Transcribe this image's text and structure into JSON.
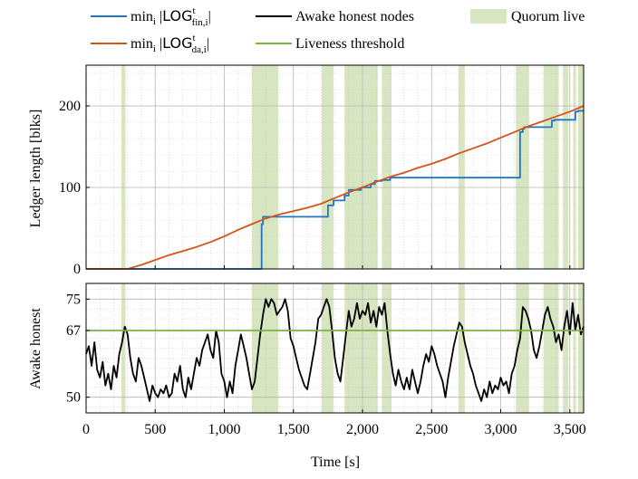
{
  "chart_data": [
    {
      "type": "line",
      "ylabel": "Ledger length [blks]",
      "xlim": [
        0,
        3600
      ],
      "ylim": [
        0,
        250
      ],
      "yticks": [
        0,
        100,
        200
      ],
      "ytick_labels": [
        "0",
        "100",
        "200"
      ],
      "grid": true,
      "legend_position": "top",
      "series": [
        {
          "name": "min_i |LOG^t_fin,i|",
          "legend_html": "min<tspan font-size=\"11\" dy=\"4\">i</tspan><tspan dy=\"-4\"> |</tspan><tspan font-family=\"DejaVu Sans\">LOG</tspan><tspan font-size=\"11\" dy=\"-8\">t</tspan><tspan font-size=\"11\" dx=\"-4\" dy=\"13\">fin,i</tspan><tspan dy=\"-5\">|</tspan>",
          "color": "#1f77c4",
          "x": [
            0,
            1270,
            1270,
            1280,
            1280,
            1750,
            1750,
            1790,
            1790,
            1870,
            1870,
            1900,
            1900,
            1990,
            1990,
            2060,
            2060,
            2090,
            2090,
            2140,
            2140,
            2200,
            2200,
            3140,
            3140,
            3160,
            3160,
            3170,
            3170,
            3180,
            3180,
            3370,
            3370,
            3390,
            3390,
            3540,
            3540,
            3560,
            3560,
            3600
          ],
          "y": [
            0,
            0,
            55,
            55,
            64,
            64,
            78,
            78,
            84,
            84,
            90,
            90,
            97,
            97,
            100,
            100,
            104,
            104,
            108,
            108,
            109,
            109,
            112,
            112,
            168,
            168,
            172,
            172,
            174,
            174,
            174,
            174,
            182,
            182,
            183,
            183,
            193,
            193,
            194,
            194
          ]
        },
        {
          "name": "min_i |LOG^t_da,i|",
          "legend_html": "min<tspan font-size=\"11\" dy=\"4\">i</tspan><tspan dy=\"-4\"> |</tspan><tspan font-family=\"DejaVu Sans\">LOG</tspan><tspan font-size=\"11\" dy=\"-8\">t</tspan><tspan font-size=\"11\" dx=\"-4\" dy=\"13\">da,i</tspan><tspan dy=\"-5\">|</tspan>",
          "color": "#d4541a",
          "x": [
            0,
            300,
            340,
            400,
            500,
            600,
            700,
            800,
            900,
            1000,
            1100,
            1200,
            1300,
            1400,
            1500,
            1600,
            1700,
            1800,
            1900,
            2000,
            2100,
            2200,
            2300,
            2400,
            2500,
            2600,
            2700,
            2800,
            2900,
            3000,
            3100,
            3200,
            3300,
            3400,
            3500,
            3600
          ],
          "y": [
            0,
            0,
            2,
            5,
            11,
            17,
            22,
            27,
            33,
            40,
            48,
            55,
            62,
            67,
            71,
            75,
            80,
            87,
            94,
            100,
            107,
            113,
            118,
            124,
            129,
            135,
            142,
            148,
            154,
            161,
            168,
            175,
            181,
            187,
            193,
            200
          ]
        }
      ]
    },
    {
      "type": "line",
      "xlabel": "Time [s]",
      "ylabel": "Awake honest",
      "xlim": [
        0,
        3600
      ],
      "ylim": [
        46,
        79
      ],
      "yticks": [
        50,
        67,
        75
      ],
      "ytick_labels": [
        "50",
        "67",
        "75"
      ],
      "xticks": [
        0,
        500,
        1000,
        1500,
        2000,
        2500,
        3000,
        3500
      ],
      "xtick_labels": [
        "0",
        "500",
        "1,000",
        "1,500",
        "2,000",
        "2,500",
        "3,000",
        "3,500"
      ],
      "grid": true,
      "series": [
        {
          "name": "Awake honest nodes",
          "color": "#000000",
          "x": [
            0,
            20,
            40,
            60,
            80,
            100,
            120,
            140,
            160,
            180,
            200,
            220,
            240,
            260,
            280,
            300,
            320,
            340,
            360,
            380,
            400,
            420,
            440,
            460,
            480,
            500,
            520,
            540,
            560,
            580,
            600,
            620,
            640,
            660,
            680,
            700,
            720,
            740,
            760,
            780,
            800,
            820,
            840,
            860,
            880,
            900,
            920,
            940,
            960,
            980,
            1000,
            1020,
            1040,
            1060,
            1080,
            1100,
            1120,
            1140,
            1160,
            1180,
            1200,
            1220,
            1240,
            1260,
            1280,
            1300,
            1320,
            1340,
            1360,
            1380,
            1400,
            1420,
            1440,
            1460,
            1480,
            1500,
            1520,
            1540,
            1560,
            1580,
            1600,
            1620,
            1640,
            1660,
            1680,
            1700,
            1720,
            1740,
            1760,
            1780,
            1800,
            1820,
            1840,
            1860,
            1880,
            1900,
            1920,
            1940,
            1960,
            1980,
            2000,
            2020,
            2040,
            2060,
            2080,
            2100,
            2120,
            2140,
            2160,
            2180,
            2200,
            2220,
            2240,
            2260,
            2280,
            2300,
            2320,
            2340,
            2360,
            2380,
            2400,
            2420,
            2440,
            2460,
            2480,
            2500,
            2520,
            2540,
            2560,
            2580,
            2600,
            2620,
            2640,
            2660,
            2680,
            2700,
            2720,
            2740,
            2760,
            2780,
            2800,
            2820,
            2840,
            2860,
            2880,
            2900,
            2920,
            2940,
            2960,
            2980,
            3000,
            3020,
            3040,
            3060,
            3080,
            3100,
            3120,
            3140,
            3160,
            3180,
            3200,
            3220,
            3240,
            3260,
            3280,
            3300,
            3320,
            3340,
            3360,
            3380,
            3400,
            3420,
            3440,
            3460,
            3480,
            3500,
            3520,
            3540,
            3560,
            3580,
            3600
          ],
          "y": [
            61,
            63,
            58,
            64,
            57,
            55,
            59,
            53,
            56,
            52,
            58,
            55,
            61,
            64,
            68,
            66,
            60,
            56,
            54,
            60,
            58,
            55,
            52,
            49,
            53,
            51,
            50,
            52,
            51,
            53,
            50,
            51,
            56,
            54,
            58,
            52,
            50,
            55,
            52,
            56,
            60,
            58,
            62,
            64,
            66,
            62,
            60,
            67,
            64,
            56,
            54,
            50,
            54,
            51,
            58,
            62,
            66,
            63,
            60,
            56,
            52,
            54,
            60,
            66,
            71,
            75,
            73,
            75,
            74,
            71,
            72,
            73,
            75,
            72,
            65,
            63,
            60,
            57,
            55,
            53,
            52,
            56,
            60,
            64,
            70,
            71,
            73,
            75,
            73,
            67,
            60,
            56,
            54,
            60,
            66,
            72,
            68,
            70,
            74,
            70,
            72,
            71,
            74,
            69,
            72,
            68,
            73,
            71,
            74,
            67,
            61,
            56,
            53,
            57,
            54,
            52,
            55,
            52,
            57,
            54,
            51,
            54,
            58,
            61,
            59,
            63,
            61,
            58,
            56,
            54,
            50,
            55,
            59,
            63,
            66,
            69,
            68,
            64,
            61,
            58,
            56,
            53,
            51,
            49,
            52,
            50,
            54,
            51,
            53,
            52,
            55,
            53,
            54,
            51,
            56,
            58,
            62,
            65,
            73,
            72,
            70,
            67,
            62,
            60,
            63,
            67,
            71,
            73,
            70,
            68,
            64,
            66,
            62,
            68,
            72,
            66,
            74,
            67,
            71,
            66,
            68
          ]
        },
        {
          "name": "Liveness threshold",
          "color": "#7cb342",
          "x": [
            0,
            3600
          ],
          "y": [
            67,
            67
          ]
        }
      ]
    }
  ],
  "quorum_live": {
    "name": "Quorum live",
    "color": "#d7e6c0",
    "intervals": [
      [
        255,
        285
      ],
      [
        1200,
        1390
      ],
      [
        1705,
        1790
      ],
      [
        1870,
        2110
      ],
      [
        2140,
        2210
      ],
      [
        2695,
        2740
      ],
      [
        3110,
        3205
      ],
      [
        3310,
        3420
      ],
      [
        3450,
        3490
      ],
      [
        3525,
        3545
      ],
      [
        3560,
        3600
      ]
    ]
  }
}
